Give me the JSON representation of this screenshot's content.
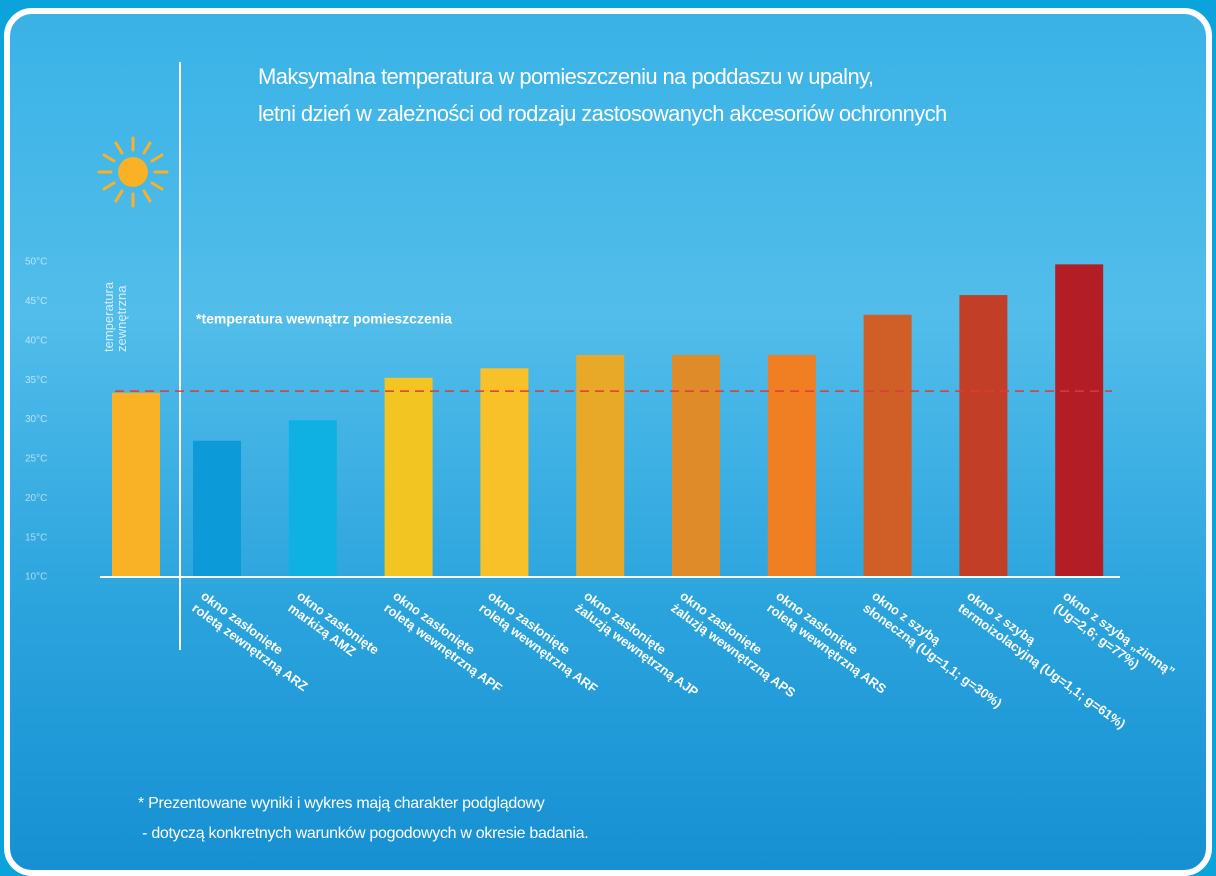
{
  "chart_data": {
    "type": "bar",
    "title": "Maksymalna temperatura w pomieszczeniu na poddaszu w upalny,\nletni dzień w zależności od rodzaju zastosowanych akcesoriów ochronnych",
    "categories": [
      "temperatura\nzewnętrzna",
      "okno zasłonięte\nroletą zewnętrzną ARZ",
      "okno zasłonięte\nmarkizą AMZ",
      "okno zasłonięte\nroletą wewnętrzną APF",
      "okno zasłonięte\nroletą wewnętrzną ARF",
      "okno zasłonięte\nżaluzją wewnętrzną AJP",
      "okno zasłonięte\nżaluzją wewnętrzną APS",
      "okno zasłonięte\nroletą wewnętrzną ARS",
      "okno z szybą\nsłoneczną (Ug=1,1; g=30%)",
      "okno z szybą\ntermoizolacyjną (Ug=1,1; g=61%)",
      "okno z szybą „zimną”\n(Ug=2,6; g=77%)"
    ],
    "values": [
      33.4,
      27.3,
      29.9,
      35.3,
      36.5,
      38.2,
      38.2,
      38.2,
      43.3,
      45.8,
      49.7
    ],
    "colors": [
      "#f9b125",
      "#0d9ad8",
      "#0fb1e3",
      "#f2c522",
      "#f8c12a",
      "#e8a828",
      "#e08b2a",
      "#ef7f22",
      "#cf5e27",
      "#c33e27",
      "#b31e26"
    ],
    "ylim": [
      10,
      50
    ],
    "yticks": [
      {
        "value": 10,
        "label": "10°C"
      },
      {
        "value": 15,
        "label": "15°C"
      },
      {
        "value": 20,
        "label": "20°C"
      },
      {
        "value": 25,
        "label": "25°C"
      },
      {
        "value": 30,
        "label": "30°C"
      },
      {
        "value": 35,
        "label": "35°C"
      },
      {
        "value": 40,
        "label": "40°C"
      },
      {
        "value": 45,
        "label": "45°C"
      },
      {
        "value": 50,
        "label": "50°C"
      }
    ],
    "reference_line": {
      "value": 33.6,
      "label": "*temperatura wewnątrz pomieszczenia",
      "color": "#e03a3a"
    },
    "footnote": [
      "* Prezentowane wyniki i wykres mają charakter podglądowy",
      " - dotyczą konkretnych warunków pogodowych w okresie badania."
    ]
  }
}
